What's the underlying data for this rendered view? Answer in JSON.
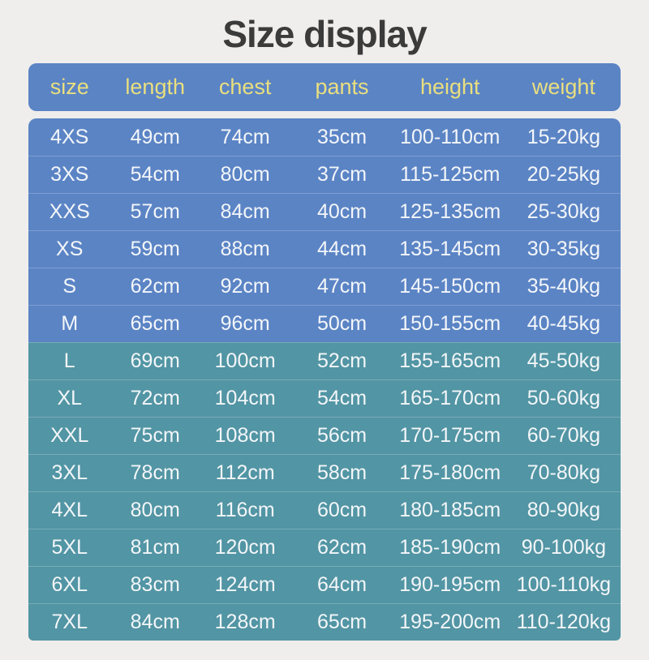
{
  "title": "Size display",
  "colors": {
    "background": "#efeeec",
    "header_background": "#5b84c5",
    "header_text": "#eadf7e",
    "blue_row": "#5b84c5",
    "teal_row": "#5295a4",
    "row_text": "#f3f6f9",
    "title_text": "#3b3b3b"
  },
  "table": {
    "blue_row_count": 6
  },
  "chart_data": {
    "type": "table",
    "title": "Size display",
    "columns": [
      "size",
      "length",
      "chest",
      "pants",
      "height",
      "weight"
    ],
    "rows": [
      [
        "4XS",
        "49cm",
        "74cm",
        "35cm",
        "100-110cm",
        "15-20kg"
      ],
      [
        "3XS",
        "54cm",
        "80cm",
        "37cm",
        "115-125cm",
        "20-25kg"
      ],
      [
        "XXS",
        "57cm",
        "84cm",
        "40cm",
        "125-135cm",
        "25-30kg"
      ],
      [
        "XS",
        "59cm",
        "88cm",
        "44cm",
        "135-145cm",
        "30-35kg"
      ],
      [
        "S",
        "62cm",
        "92cm",
        "47cm",
        "145-150cm",
        "35-40kg"
      ],
      [
        "M",
        "65cm",
        "96cm",
        "50cm",
        "150-155cm",
        "40-45kg"
      ],
      [
        "L",
        "69cm",
        "100cm",
        "52cm",
        "155-165cm",
        "45-50kg"
      ],
      [
        "XL",
        "72cm",
        "104cm",
        "54cm",
        "165-170cm",
        "50-60kg"
      ],
      [
        "XXL",
        "75cm",
        "108cm",
        "56cm",
        "170-175cm",
        "60-70kg"
      ],
      [
        "3XL",
        "78cm",
        "112cm",
        "58cm",
        "175-180cm",
        "70-80kg"
      ],
      [
        "4XL",
        "80cm",
        "116cm",
        "60cm",
        "180-185cm",
        "80-90kg"
      ],
      [
        "5XL",
        "81cm",
        "120cm",
        "62cm",
        "185-190cm",
        "90-100kg"
      ],
      [
        "6XL",
        "83cm",
        "124cm",
        "64cm",
        "190-195cm",
        "100-110kg"
      ],
      [
        "7XL",
        "84cm",
        "128cm",
        "65cm",
        "195-200cm",
        "110-120kg"
      ]
    ]
  }
}
